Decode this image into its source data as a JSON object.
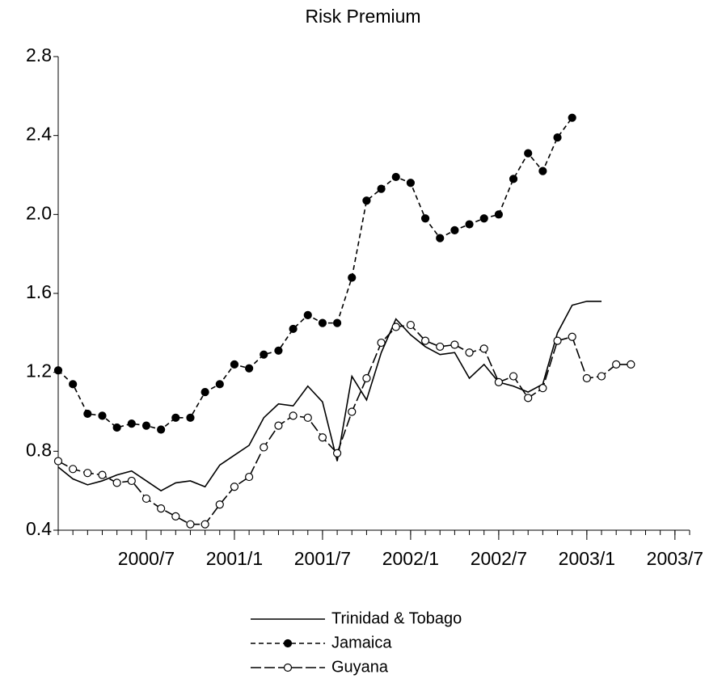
{
  "chart_data": {
    "type": "line",
    "title": "Risk Premium",
    "x": [
      "2000/1",
      "2000/2",
      "2000/3",
      "2000/4",
      "2000/5",
      "2000/6",
      "2000/7",
      "2000/8",
      "2000/9",
      "2000/10",
      "2000/11",
      "2000/12",
      "2001/1",
      "2001/2",
      "2001/3",
      "2001/4",
      "2001/5",
      "2001/6",
      "2001/7",
      "2001/8",
      "2001/9",
      "2001/10",
      "2001/11",
      "2001/12",
      "2002/1",
      "2002/2",
      "2002/3",
      "2002/4",
      "2002/5",
      "2002/6",
      "2002/7",
      "2002/8",
      "2002/9",
      "2002/10",
      "2002/11",
      "2002/12",
      "2003/1",
      "2003/2",
      "2003/3",
      "2003/4"
    ],
    "xlim": [
      "2000/1",
      "2003/8"
    ],
    "xticks": [
      "2000/7",
      "2001/1",
      "2001/7",
      "2002/1",
      "2002/7",
      "2003/1",
      "2003/7"
    ],
    "ylim": [
      0.4,
      2.8
    ],
    "yticks": [
      0.4,
      0.8,
      1.2,
      1.6,
      {
        "value": 2,
        "label": "2.0"
      },
      2.4,
      2.8
    ],
    "series": [
      {
        "name": "Trinidad & Tobago",
        "color": "#000000",
        "dash": "none",
        "marker": "none",
        "values": [
          0.72,
          0.66,
          0.63,
          0.65,
          0.68,
          0.7,
          0.65,
          0.6,
          0.64,
          0.65,
          0.62,
          0.73,
          0.78,
          0.83,
          0.97,
          1.04,
          1.03,
          1.13,
          1.05,
          0.75,
          1.18,
          1.06,
          1.3,
          1.47,
          1.39,
          1.33,
          1.29,
          1.3,
          1.17,
          1.24,
          1.15,
          1.13,
          1.1,
          1.14,
          1.4,
          1.54,
          1.56,
          1.56,
          null,
          null
        ]
      },
      {
        "name": "Jamaica",
        "color": "#000000",
        "dash": "6,4",
        "marker": "filled",
        "values": [
          1.21,
          1.14,
          0.99,
          0.98,
          0.92,
          0.94,
          0.93,
          0.91,
          0.97,
          0.97,
          1.1,
          1.14,
          1.24,
          1.22,
          1.29,
          1.31,
          1.42,
          1.49,
          1.45,
          1.45,
          1.68,
          2.07,
          2.13,
          2.19,
          2.16,
          1.98,
          1.88,
          1.92,
          1.95,
          1.98,
          2.0,
          2.18,
          2.31,
          2.22,
          2.39,
          2.49,
          null,
          null,
          null,
          null
        ]
      },
      {
        "name": "Guyana",
        "color": "#000000",
        "dash": "13,4",
        "marker": "open",
        "values": [
          0.75,
          0.71,
          0.69,
          0.68,
          0.64,
          0.65,
          0.56,
          0.51,
          0.47,
          0.43,
          0.43,
          0.53,
          0.62,
          0.67,
          0.82,
          0.93,
          0.98,
          0.97,
          0.87,
          0.79,
          1.0,
          1.17,
          1.35,
          1.43,
          1.44,
          1.36,
          1.33,
          1.34,
          1.3,
          1.32,
          1.15,
          1.18,
          1.07,
          1.12,
          1.36,
          1.38,
          1.17,
          1.18,
          1.24,
          1.24
        ]
      }
    ]
  }
}
